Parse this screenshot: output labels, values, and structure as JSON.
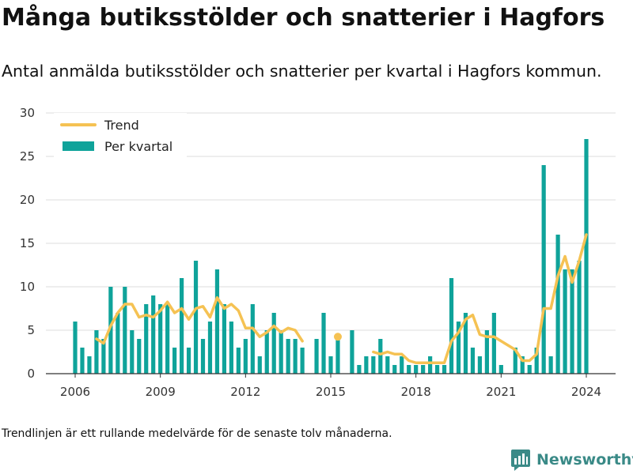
{
  "title": "Många butiksstölder och snatterier i Hagfors",
  "subtitle": "Antal anmälda butiksstölder och snatterier per kvartal i Hagfors kommun.",
  "footnote": "Trendlinjen är ett rullande medelvärde för de senaste tolv månaderna.",
  "brand": {
    "name": "Newsworthy"
  },
  "colors": {
    "bar": "#0fa39a",
    "trend": "#f5c253",
    "grid": "#dddddd",
    "axis": "#333333",
    "brand": "#3a8a87"
  },
  "chart_data": {
    "type": "bar",
    "legend": {
      "position": "top-left",
      "entries": [
        "Trend",
        "Per kvartal"
      ]
    },
    "xticks": [
      2006,
      2009,
      2012,
      2015,
      2018,
      2021,
      2024
    ],
    "yticks": [
      0,
      5,
      10,
      15,
      20,
      25,
      30
    ],
    "ylim": [
      0,
      30
    ],
    "grid": true,
    "series": [
      {
        "name": "Per kvartal",
        "type": "bar",
        "start": [
          2006,
          1
        ],
        "values": [
          6,
          3,
          2,
          5,
          4,
          10,
          7,
          10,
          5,
          4,
          8,
          9,
          8,
          8,
          3,
          11,
          3,
          13,
          4,
          6,
          12,
          8,
          6,
          3,
          4,
          8,
          2,
          5,
          7,
          5,
          4,
          4,
          3,
          0,
          4,
          7,
          2,
          4,
          0,
          5,
          1,
          2,
          2,
          4,
          2,
          1,
          2,
          1,
          1,
          1,
          2,
          1,
          1,
          11,
          6,
          7,
          3,
          2,
          5,
          7,
          1,
          0,
          3,
          2,
          1,
          3,
          24,
          2,
          16,
          12,
          12,
          13,
          27
        ]
      },
      {
        "name": "Trend",
        "type": "line",
        "start": [
          2006,
          4
        ],
        "values": [
          4.0,
          3.5,
          5.5,
          7.0,
          8.0,
          8.0,
          6.5,
          6.75,
          6.5,
          7.25,
          8.25,
          7.0,
          7.5,
          6.25,
          7.5,
          7.75,
          6.5,
          8.75,
          7.5,
          8.0,
          7.25,
          5.25,
          5.25,
          4.25,
          4.75,
          5.5,
          4.75,
          5.25,
          5.0,
          3.75,
          null,
          null,
          null,
          null,
          4.25,
          null,
          null,
          null,
          null,
          2.5,
          2.25,
          2.5,
          2.25,
          2.25,
          1.5,
          1.25,
          1.25,
          1.25,
          1.25,
          1.25,
          3.75,
          4.75,
          6.25,
          6.75,
          4.5,
          4.25,
          4.25,
          3.75,
          3.25,
          2.75,
          1.5,
          1.5,
          2.25,
          7.5,
          7.5,
          11.25,
          13.5,
          10.5,
          13.0,
          16.0
        ]
      }
    ]
  }
}
